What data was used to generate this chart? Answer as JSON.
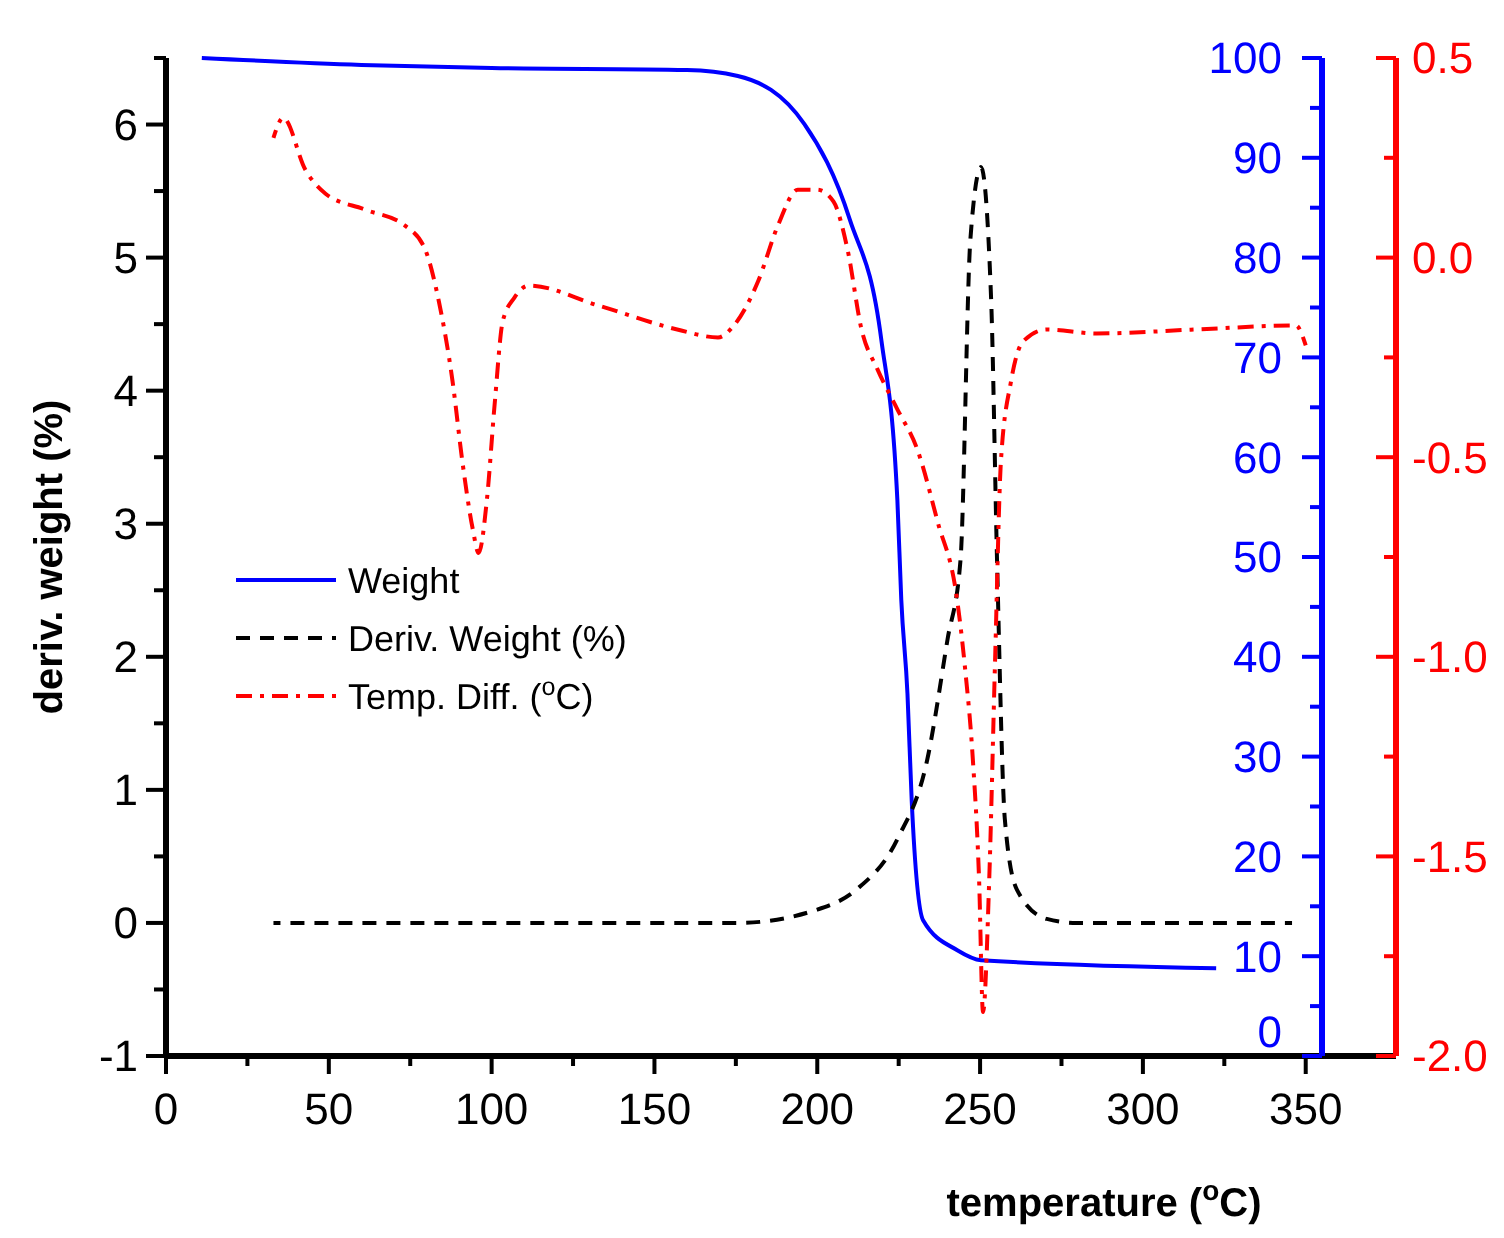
{
  "chart_data": {
    "type": "line",
    "xlabel": "temperature ($^{o}$C)",
    "ylabel": "deriv. weight (%)",
    "xlim": [
      0,
      355
    ],
    "xticks": [
      0,
      {
        "value": 25,
        "label": null
      },
      50,
      {
        "value": 75,
        "label": null
      },
      100,
      {
        "value": 125,
        "label": null
      },
      150,
      {
        "value": 175,
        "label": null
      },
      200,
      {
        "value": 225,
        "label": null
      },
      250,
      {
        "value": 275,
        "label": null
      },
      300,
      {
        "value": 325,
        "label": null
      },
      350
    ],
    "ylim": [
      -1,
      6.5
    ],
    "yticks": [
      -1,
      {
        "value": -0.5,
        "label": null
      },
      0,
      {
        "value": 0.5,
        "label": null
      },
      1,
      {
        "value": 1.5,
        "label": null
      },
      2,
      {
        "value": 2.5,
        "label": null
      },
      3,
      {
        "value": 3.5,
        "label": null
      },
      4,
      {
        "value": 4.5,
        "label": null
      },
      5,
      {
        "value": 5.5,
        "label": null
      },
      6,
      {
        "value": 6.5,
        "label": null
      }
    ],
    "y2lim": [
      0,
      100
    ],
    "y2ticks": [
      0,
      {
        "value": 5,
        "label": null
      },
      10,
      {
        "value": 15,
        "label": null
      },
      20,
      {
        "value": 25,
        "label": null
      },
      30,
      {
        "value": 35,
        "label": null
      },
      40,
      {
        "value": 45,
        "label": null
      },
      50,
      {
        "value": 55,
        "label": null
      },
      60,
      {
        "value": 65,
        "label": null
      },
      70,
      {
        "value": 75,
        "label": null
      },
      80,
      {
        "value": 85,
        "label": null
      },
      90,
      {
        "value": 95,
        "label": null
      },
      100
    ],
    "y3lim": [
      -2,
      0.5
    ],
    "y3ticks": [
      {
        "value": -2,
        "label": "-2.0"
      },
      {
        "value": -1.75,
        "label": null
      },
      {
        "value": -1.5,
        "label": "-1.5"
      },
      {
        "value": -1.25,
        "label": null
      },
      {
        "value": -1,
        "label": "-1.0"
      },
      {
        "value": -0.75,
        "label": null
      },
      {
        "value": -0.5,
        "label": "-0.5"
      },
      {
        "value": -0.25,
        "label": null
      },
      {
        "value": 0,
        "label": "0.0"
      },
      {
        "value": 0.25,
        "label": null
      },
      {
        "value": 0.5,
        "label": "0.5"
      }
    ],
    "legend": "left",
    "grid": false,
    "marker": "none",
    "series": [
      {
        "name": "Weight",
        "color": "#0000ff",
        "axis": "y2",
        "line_style": "solid",
        "x": [
          11,
          60,
          100,
          160,
          175.6,
          196,
          210,
          219.7,
          224.6,
          225.8,
          227.7,
          229,
          232.5,
          243,
          250.3,
          322.5
        ],
        "values": [
          100,
          99.3,
          99,
          98.8,
          98.2,
          93.4,
          83.8,
          71.7,
          55.7,
          45.7,
          36.3,
          25.6,
          13.6,
          10.6,
          9.6,
          8.8
        ]
      },
      {
        "name": "Deriv. Weight (%)",
        "color": "#000000",
        "axis": "y",
        "line_style": "dashed",
        "x": [
          33,
          100,
          175.6,
          200,
          212,
          224.6,
          233.8,
          240,
          244,
          247,
          250.3,
          253.4,
          255.2,
          257.6,
          261.3,
          270.5,
          279.7,
          345.8
        ],
        "values": [
          0,
          0,
          0,
          0.1,
          0.25,
          0.63,
          1.23,
          2.13,
          2.73,
          5.13,
          5.68,
          4.68,
          2.73,
          0.78,
          0.25,
          0.03,
          0,
          0
        ]
      },
      {
        "name": "Temp. Diff. ($^{o}$C)",
        "color": "#ff0000",
        "axis": "y3",
        "line_style": "dashdot",
        "x": [
          33,
          36,
          42.8,
          49,
          61.2,
          73.4,
          79.6,
          83.8,
          88,
          91,
          94.2,
          96,
          98.5,
          101,
          103.4,
          107,
          111.4,
          132.8,
          157,
          169.5,
          174.4,
          181.8,
          187.9,
          194,
          200,
          205,
          209.3,
          213.6,
          218.5,
          224.6,
          230.7,
          236.9,
          243,
          245.4,
          247.8,
          249.7,
          250.9,
          252.8,
          254.6,
          256.4,
          259.5,
          263.2,
          270.5,
          285.8,
          316.4,
          347,
          350
        ],
        "values": [
          0.3,
          0.35,
          0.22,
          0.16,
          0.12,
          0.08,
          0.02,
          -0.11,
          -0.31,
          -0.51,
          -0.68,
          -0.74,
          -0.61,
          -0.36,
          -0.16,
          -0.1,
          -0.07,
          -0.12,
          -0.18,
          -0.2,
          -0.17,
          -0.06,
          0.08,
          0.17,
          0.17,
          0.14,
          0.02,
          -0.18,
          -0.28,
          -0.38,
          -0.48,
          -0.66,
          -0.86,
          -1.03,
          -1.26,
          -1.56,
          -1.89,
          -1.56,
          -1.01,
          -0.51,
          -0.31,
          -0.21,
          -0.18,
          -0.19,
          -0.18,
          -0.17,
          -0.22
        ]
      }
    ]
  }
}
